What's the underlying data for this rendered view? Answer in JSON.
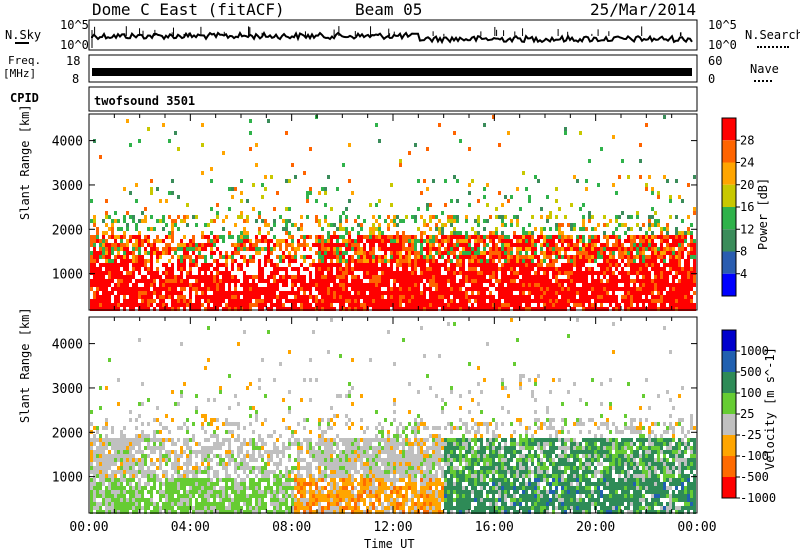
{
  "header": {
    "station": "Dome C East (fitACF)",
    "beam": "Beam 05",
    "date": "25/Mar/2014"
  },
  "top_panels": {
    "nsky_label": "N.Sky",
    "nsky_ticks": [
      "10^5",
      "10^0"
    ],
    "nsearch_label": "N.Search",
    "nsearch_ticks": [
      "10^5",
      "10^0"
    ],
    "freq_label": "Freq.",
    "freq_unit": "[MHz]",
    "freq_ticks": [
      "18",
      "8"
    ],
    "nave_label": "Nave",
    "nave_ticks": [
      "60",
      "0"
    ],
    "cpid_label": "CPID",
    "cpid_value": "twofsound 3501"
  },
  "chart_data": [
    {
      "type": "heatmap",
      "panel": "power",
      "ylabel": "Slant Range [km]",
      "xlabel": "Time UT",
      "yticks": [
        "1000",
        "2000",
        "3000",
        "4000"
      ],
      "ylim": [
        180,
        4600
      ],
      "xlim": [
        0,
        24
      ],
      "colorbar_label": "Power [dB]",
      "colorbar_ticks": [
        "4",
        "8",
        "12",
        "16",
        "20",
        "24",
        "28"
      ],
      "colors": [
        "#0000ff",
        "#2a5db0",
        "#3a8c5a",
        "#2fb24a",
        "#c8c800",
        "#ffa500",
        "#ff6400",
        "#ff0000"
      ]
    },
    {
      "type": "heatmap",
      "panel": "velocity",
      "ylabel": "Slant Range [km]",
      "xlabel": "Time UT",
      "xticks": [
        "00:00",
        "04:00",
        "08:00",
        "12:00",
        "16:00",
        "20:00",
        "00:00"
      ],
      "yticks": [
        "1000",
        "2000",
        "3000",
        "4000"
      ],
      "ylim": [
        180,
        4600
      ],
      "xlim": [
        0,
        24
      ],
      "colorbar_label": "Velocity [m s^-1]",
      "colorbar_ticks": [
        "1000",
        "500",
        "100",
        "25",
        "-25",
        "-100",
        "-500",
        "-1000"
      ],
      "colors": [
        "#0000cc",
        "#2060b0",
        "#2e8b57",
        "#66cc33",
        "#c0c0c0",
        "#ffa500",
        "#ff6a00",
        "#ff0000"
      ]
    }
  ]
}
